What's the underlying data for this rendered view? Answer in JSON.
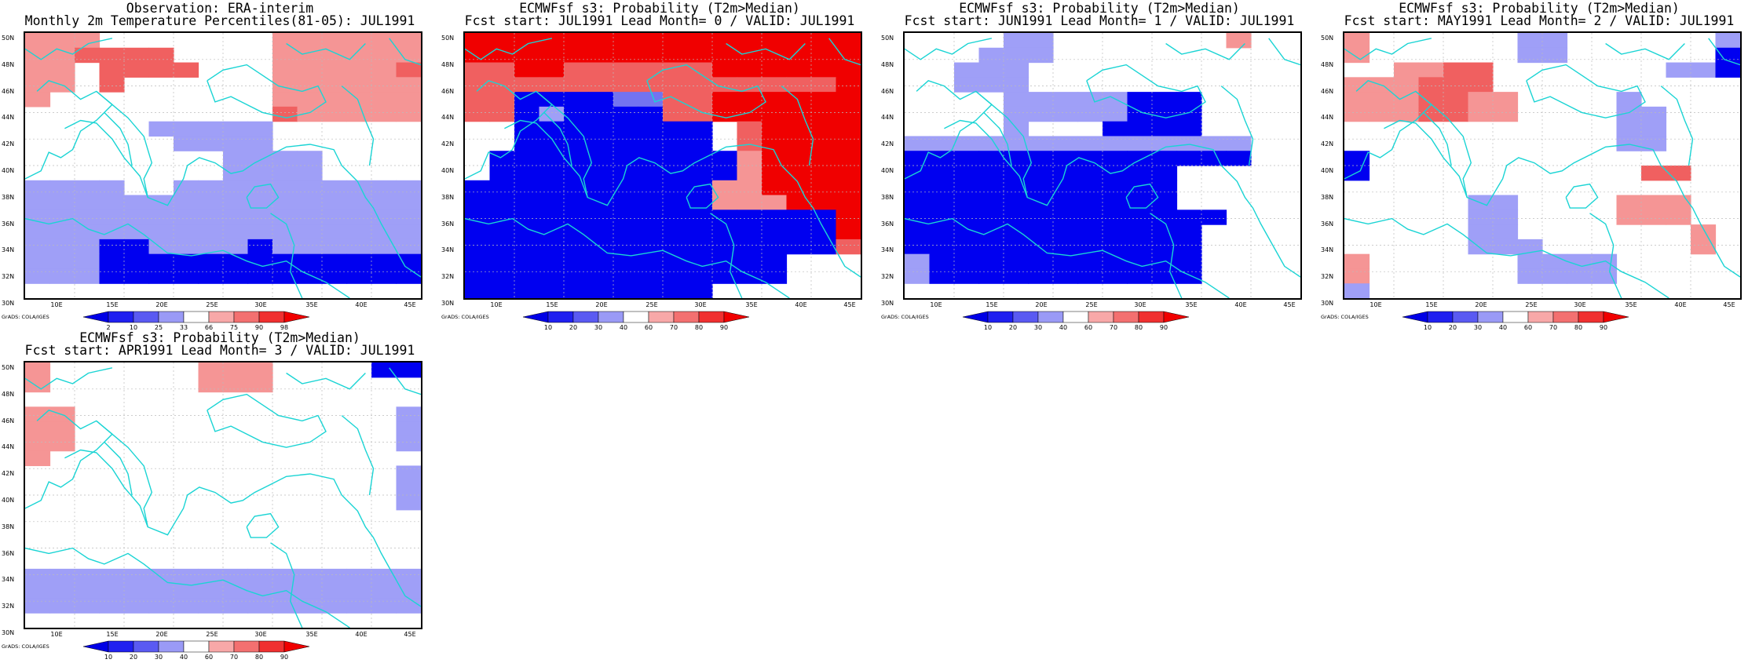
{
  "panels": [
    {
      "title1": "Observation: ERA-interim",
      "title2": "Monthly 2m Temperature Percentiles(81-05): JUL1991",
      "cb_labels": [
        "2",
        "10",
        "25",
        "33",
        "66",
        "75",
        "90",
        "98"
      ],
      "grid": [
        "5551111111555555",
        "5566661111555555",
        "5516666111555556",
        "5516111111555555",
        "5111111111555555",
        "1111111111655555",
        "1111122222111111",
        "1111112222111111",
        "1111111122221111",
        "1111111122221111",
        "2222112222222222",
        "2222222222222222",
        "2222222222222222",
        "2222222222222222",
        "2223322223222222",
        "2223333333333333",
        "2223333333333333",
        "1111111111111111"
      ]
    },
    {
      "title1": "ECMWFsf s3: Probability (T2m>Median)",
      "title2": "Fcst start: JUL1991   Lead Month= 0 / VALID: JUL1991",
      "cb_labels": [
        "10",
        "20",
        "30",
        "40",
        "60",
        "70",
        "80",
        "90"
      ],
      "grid": [
        "7777777777777777",
        "7777777777777777",
        "6677666666777777",
        "6666666666666667",
        "6633334466777777",
        "6632333366777777",
        "1133333333167777",
        "1133333333167777",
        "1333333333357777",
        "1333333333357777",
        "3333333333557777",
        "3333333333555777",
        "3333333333333337",
        "3333333333333337",
        "3333333333333336",
        "3333333333333111",
        "3333333333333111",
        "3333333333111111"
      ]
    },
    {
      "title1": "ECMWFsf s3: Probability (T2m>Median)",
      "title2": "Fcst start: JUN1991   Lead Month= 1 / VALID: JUL1991",
      "cb_labels": [
        "10",
        "20",
        "30",
        "40",
        "60",
        "70",
        "80",
        "90"
      ],
      "grid": [
        "1111221111111511",
        "1112221111111111",
        "1122211111111111",
        "1122211111111111",
        "1111222223331111",
        "1111222223331111",
        "1111211133331111",
        "2222222222222211",
        "3333333333333311",
        "3333333333311111",
        "3333333333311111",
        "3333333333311111",
        "3333333333333111",
        "3333333333331111",
        "3333333333331111",
        "2333333333331111",
        "2333333333331111",
        "1111111111111111"
      ]
    },
    {
      "title1": "ECMWFsf s3: Probability (T2m>Median)",
      "title2": "Fcst start: MAY1991   Lead Month= 2 / VALID: JUL1991",
      "cb_labels": [
        "10",
        "20",
        "30",
        "40",
        "60",
        "70",
        "80",
        "90"
      ],
      "grid": [
        "5111111221111112",
        "5111111221111113",
        "1155661111111223",
        "5556661111111111",
        "5556655111121111",
        "5556655111122111",
        "1111111111122111",
        "1111111111122111",
        "3111111111111111",
        "3111111111116611",
        "1111111111111111",
        "1111122111155511",
        "1111122111155511",
        "1111122111111151",
        "1111122211111151",
        "5111111222211111",
        "5111111222211111",
        "2111111111111111"
      ]
    },
    {
      "title1": "ECMWFsf s3: Probability (T2m>Median)",
      "title2": "Fcst start: APR1991   Lead Month= 3 / VALID: JUL1991",
      "cb_labels": [
        "10",
        "20",
        "30",
        "40",
        "60",
        "70",
        "80",
        "90"
      ],
      "grid": [
        "5111111555111133",
        "5111111555111111",
        "1111111111111111",
        "5511111111111112",
        "5511111111111112",
        "5511111111111112",
        "5111111111111111",
        "1111111111111112",
        "1111111111111112",
        "1111111111111112",
        "1111111111111111",
        "1111111111111111",
        "1111111111111111",
        "1111111111111111",
        "2222222222222222",
        "2222222222222222",
        "2222222222222222",
        "1111111111111111"
      ]
    }
  ],
  "y_labels": [
    "50N",
    "48N",
    "46N",
    "44N",
    "42N",
    "40N",
    "38N",
    "36N",
    "34N",
    "32N",
    "30N"
  ],
  "x_labels": [
    "10E",
    "15E",
    "20E",
    "25E",
    "30E",
    "35E",
    "40E",
    "45E"
  ],
  "credit": "GrADS: COLA/IGES",
  "colors": {
    "cell_0": "#ffffff",
    "cell_1": "#ffffff",
    "cell_2": "#9f9ff7",
    "cell_3": "#0000f0",
    "cell_4": "#7373f0",
    "cell_5": "#f59595",
    "cell_6": "#f06060",
    "cell_7": "#f00000",
    "coast": "#1ad4d4",
    "colorbar": [
      "#0000e6",
      "#2020f0",
      "#5a5af2",
      "#9a9af6",
      "#ffffff",
      "#f8a8a8",
      "#f37070",
      "#f03030",
      "#f00000"
    ]
  }
}
